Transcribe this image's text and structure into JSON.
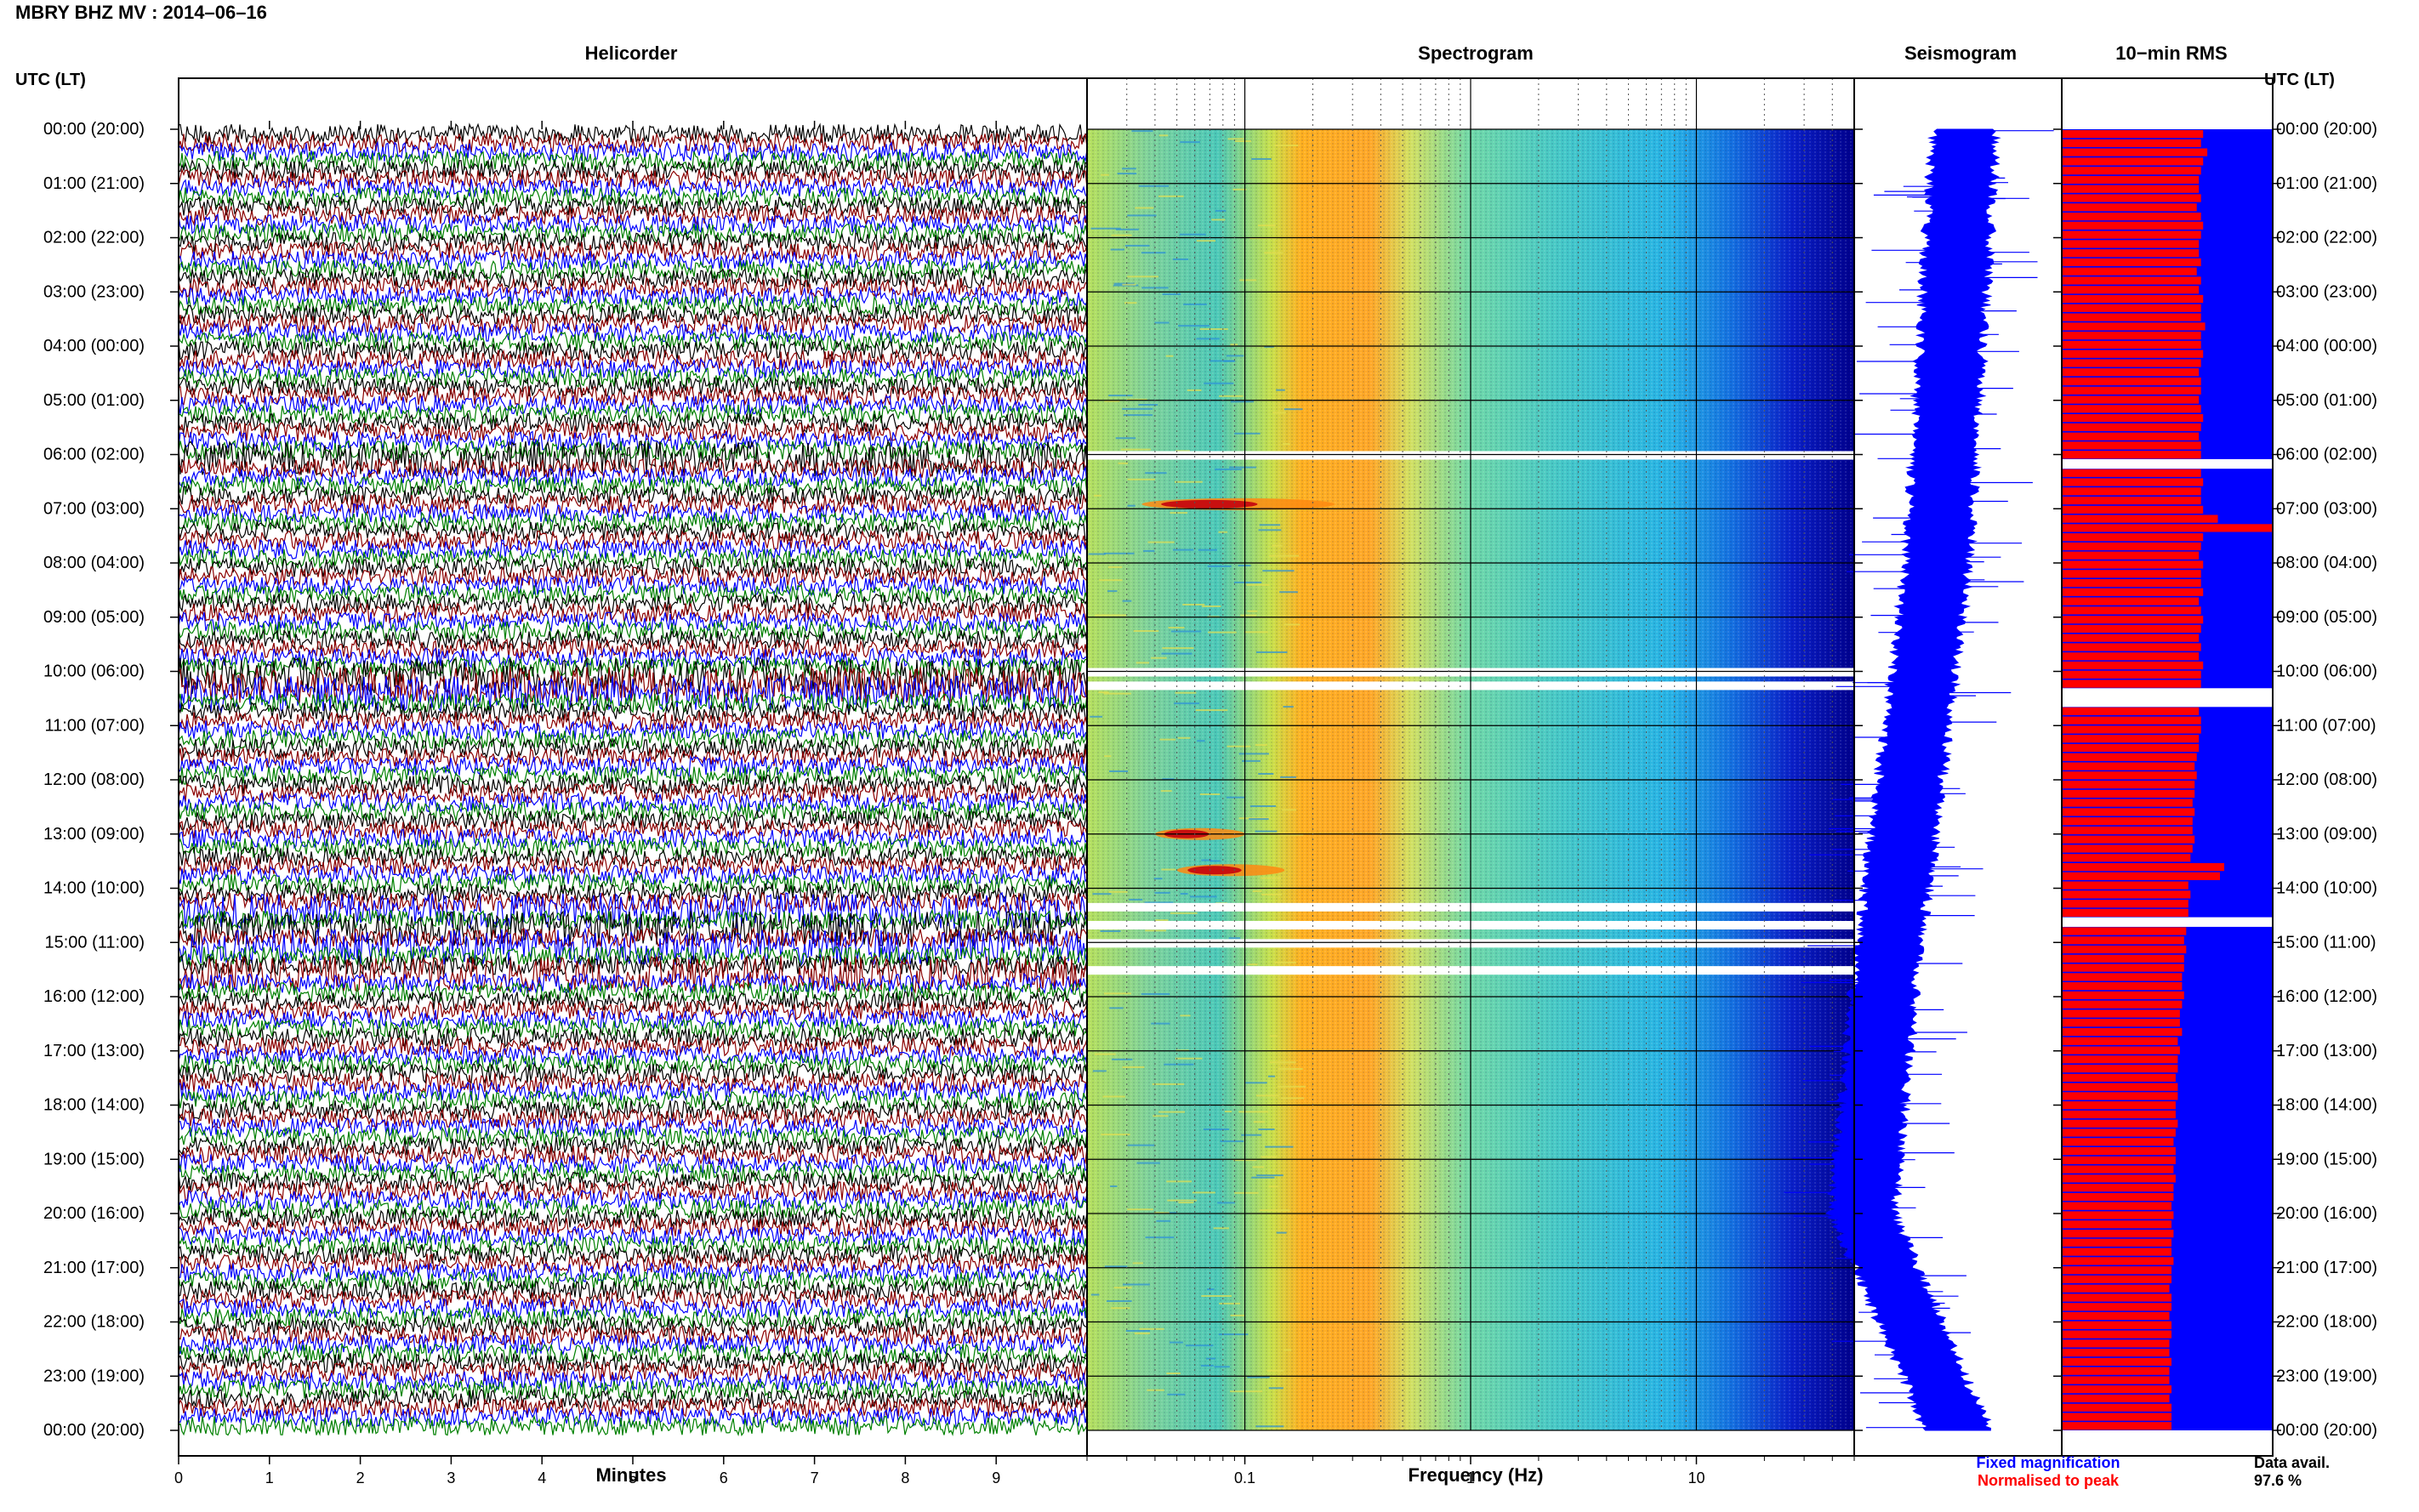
{
  "header": {
    "title": "MBRY BHZ MV : 2014–06–16",
    "utc_label_left": "UTC (LT)",
    "utc_label_right": "UTC (LT)"
  },
  "panels": {
    "helicorder": "Helicorder",
    "spectrogram": "Spectrogram",
    "seismogram": "Seismogram",
    "rms": "10−min RMS"
  },
  "axes": {
    "minutes_label": "Minutes",
    "frequency_label": "Frequency (Hz)",
    "minute_ticks": [
      "0",
      "1",
      "2",
      "3",
      "4",
      "5",
      "6",
      "7",
      "8",
      "9"
    ],
    "frequency_ticks": [
      "0.1",
      "1",
      "10"
    ]
  },
  "time_labels": [
    "00:00 (20:00)",
    "01:00 (21:00)",
    "02:00 (22:00)",
    "03:00 (23:00)",
    "04:00 (00:00)",
    "05:00 (01:00)",
    "06:00 (02:00)",
    "07:00 (03:00)",
    "08:00 (04:00)",
    "09:00 (05:00)",
    "10:00 (06:00)",
    "11:00 (07:00)",
    "12:00 (08:00)",
    "13:00 (09:00)",
    "14:00 (10:00)",
    "15:00 (11:00)",
    "16:00 (12:00)",
    "17:00 (13:00)",
    "18:00 (14:00)",
    "19:00 (15:00)",
    "20:00 (16:00)",
    "21:00 (17:00)",
    "22:00 (18:00)",
    "23:00 (19:00)",
    "00:00 (20:00)"
  ],
  "legend": {
    "fixed_magnification": "Fixed magnification",
    "normalised_to_peak": "Normalised to peak",
    "data_avail_label": "Data avail.",
    "data_avail_value": "97.6 %"
  },
  "colors": {
    "trace_cycle": [
      "#000000",
      "#8b0000",
      "#0000ff",
      "#008000"
    ],
    "seismogram": "#0000ff",
    "rms_normalised": "#ff0000",
    "rms_fixed": "#0000ff"
  },
  "chart_data": {
    "type": "heatmap",
    "station": "MBRY BHZ MV",
    "date": "2014-06-16",
    "hours": 24,
    "helicorder": {
      "x_range_minutes": [
        0,
        10
      ],
      "rows_per_hour": 6,
      "trace_color_cycle": [
        "black",
        "dark red",
        "blue",
        "green"
      ]
    },
    "spectrogram": {
      "frequency_range_hz": [
        0.02,
        50
      ],
      "scale": "log",
      "dominant_band_hz": [
        0.2,
        0.6
      ],
      "events": [
        {
          "time_utc": "06:55",
          "freq_hz": [
            0.035,
            0.25
          ]
        },
        {
          "time_utc": "13:00",
          "freq_hz": [
            0.04,
            0.1
          ]
        },
        {
          "time_utc": "13:40",
          "freq_hz": [
            0.05,
            0.15
          ]
        }
      ],
      "gaps_utc": [
        "06:00",
        "10:00",
        "10:15",
        "14:20",
        "14:40",
        "15:00",
        "15:30"
      ]
    },
    "rms_10min_relative": [
      0.67,
      0.66,
      0.69,
      0.67,
      0.66,
      0.65,
      0.65,
      0.66,
      0.64,
      0.66,
      0.67,
      0.66,
      0.65,
      0.65,
      0.66,
      0.64,
      0.66,
      0.65,
      0.67,
      0.66,
      0.66,
      0.68,
      0.66,
      0.66,
      0.67,
      0.66,
      0.65,
      0.66,
      0.66,
      0.65,
      0.66,
      0.67,
      0.66,
      0.65,
      0.66,
      0.66,
      0.0,
      0.66,
      0.67,
      0.66,
      0.66,
      0.67,
      0.74,
      1.0,
      0.67,
      0.66,
      0.65,
      0.67,
      0.66,
      0.66,
      0.67,
      0.65,
      0.66,
      0.67,
      0.66,
      0.65,
      0.66,
      0.65,
      0.67,
      0.66,
      0.66,
      0.0,
      0.0,
      0.65,
      0.66,
      0.66,
      0.65,
      0.65,
      0.64,
      0.63,
      0.64,
      0.63,
      0.63,
      0.62,
      0.63,
      0.62,
      0.62,
      0.63,
      0.62,
      0.61,
      0.77,
      0.75,
      0.6,
      0.61,
      0.6,
      0.6,
      0.0,
      0.59,
      0.58,
      0.59,
      0.58,
      0.58,
      0.57,
      0.57,
      0.58,
      0.57,
      0.56,
      0.56,
      0.57,
      0.55,
      0.56,
      0.55,
      0.55,
      0.54,
      0.55,
      0.55,
      0.54,
      0.54,
      0.55,
      0.54,
      0.53,
      0.54,
      0.54,
      0.53,
      0.54,
      0.53,
      0.53,
      0.52,
      0.53,
      0.52,
      0.53,
      0.52,
      0.52,
      0.53,
      0.52,
      0.52,
      0.51,
      0.52,
      0.52,
      0.51,
      0.52,
      0.52,
      0.51,
      0.51,
      0.52,
      0.51,
      0.51,
      0.52,
      0.51,
      0.52,
      0.52,
      0.52
    ],
    "data_availability_percent": 97.6
  }
}
